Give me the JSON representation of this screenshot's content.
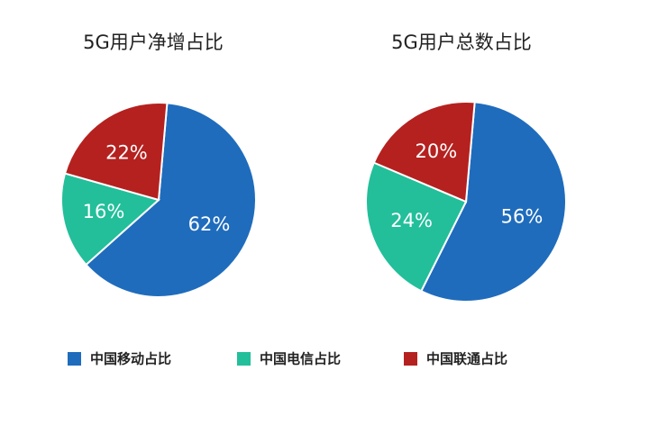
{
  "chart_data": [
    {
      "type": "pie",
      "title": "5G用户净增占比",
      "values": [
        62,
        16,
        22
      ],
      "value_labels": [
        "62%",
        "16%",
        "22%"
      ]
    },
    {
      "type": "pie",
      "title": "5G用户总数占比",
      "values": [
        56,
        24,
        20
      ],
      "value_labels": [
        "56%",
        "24%",
        "20%"
      ]
    }
  ],
  "legend": {
    "labels": [
      "中国移动占比",
      "中国电信占比",
      "中国联通占比"
    ],
    "colors": [
      "#1f6cbd",
      "#22bf9a",
      "#b5211f"
    ]
  }
}
